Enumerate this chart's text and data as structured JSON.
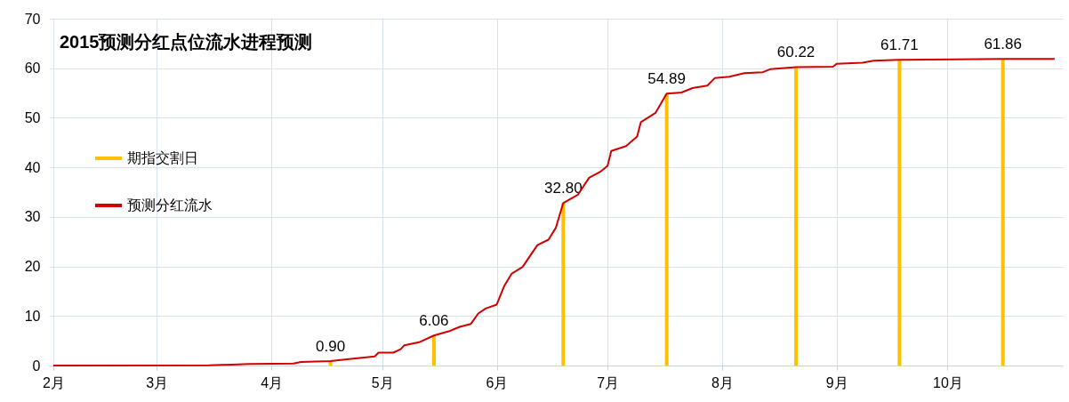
{
  "chart_data": {
    "type": "line",
    "title": "2015预测分红点位流水进程预测",
    "xlim": [
      "--02-01",
      "--10-31"
    ],
    "xticks": [
      {
        "value": "--02-01",
        "label": "2月"
      },
      {
        "value": "--03-01",
        "label": "3月"
      },
      {
        "value": "--04-01",
        "label": "4月"
      },
      {
        "value": "--05-01",
        "label": "5月"
      },
      {
        "value": "--06-01",
        "label": "6月"
      },
      {
        "value": "--07-01",
        "label": "7月"
      },
      {
        "value": "--08-01",
        "label": "8月"
      },
      {
        "value": "--09-01",
        "label": "9月"
      },
      {
        "value": "--10-01",
        "label": "10月"
      }
    ],
    "ylim": [
      0,
      70
    ],
    "yticks": [
      0,
      10,
      20,
      30,
      40,
      50,
      60,
      70
    ],
    "grid": true,
    "legend": "left",
    "line_style": "solid",
    "marker": "none",
    "series": [
      {
        "type": "bar",
        "name": "期指交割日",
        "color": "#ffc000",
        "x": [
          "--04-17",
          "--05-15",
          "--06-19",
          "--07-17",
          "--08-21",
          "--09-18",
          "--10-16"
        ],
        "values": [
          0.9,
          6.06,
          32.8,
          54.89,
          60.22,
          61.71,
          61.86
        ],
        "value_labels": [
          "0.90",
          "6.06",
          "32.80",
          "54.89",
          "60.22",
          "61.71",
          "61.86"
        ]
      },
      {
        "type": "line",
        "name": "预测分红流水",
        "color": "#d00000",
        "x": [
          "--02-01",
          "--03-15",
          "--03-26",
          "--04-07",
          "--04-09",
          "--04-17",
          "--04-22",
          "--04-29",
          "--04-30",
          "--05-04",
          "--05-06",
          "--05-07",
          "--05-11",
          "--05-15",
          "--05-19",
          "--05-22",
          "--05-25",
          "--05-27",
          "--05-29",
          "--06-01",
          "--06-03",
          "--06-05",
          "--06-08",
          "--06-12",
          "--06-15",
          "--06-17",
          "--06-19",
          "--06-23",
          "--06-26",
          "--06-29",
          "--07-01",
          "--07-02",
          "--07-06",
          "--07-09",
          "--07-10",
          "--07-14",
          "--07-17",
          "--07-21",
          "--07-24",
          "--07-28",
          "--07-30",
          "--08-03",
          "--08-07",
          "--08-12",
          "--08-14",
          "--08-21",
          "--08-31",
          "--09-01",
          "--09-08",
          "--09-11",
          "--09-18",
          "--10-03",
          "--10-16",
          "--10-30"
        ],
        "values": [
          0,
          0.05,
          0.3,
          0.4,
          0.7,
          0.9,
          1.3,
          1.85,
          2.6,
          2.6,
          3.3,
          4.1,
          4.7,
          6.06,
          6.9,
          7.8,
          8.4,
          10.5,
          11.5,
          12.3,
          16.0,
          18.5,
          19.9,
          24.3,
          25.4,
          27.8,
          32.8,
          34.5,
          37.9,
          39.1,
          40.3,
          43.3,
          44.3,
          46.2,
          49.1,
          51.0,
          54.89,
          55.1,
          56.0,
          56.5,
          58.0,
          58.3,
          59.0,
          59.2,
          59.8,
          60.22,
          60.3,
          60.9,
          61.1,
          61.5,
          61.71,
          61.8,
          61.86,
          61.9
        ]
      }
    ]
  }
}
